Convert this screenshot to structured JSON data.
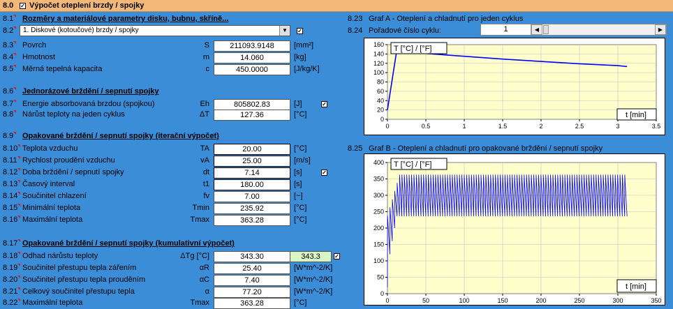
{
  "header": {
    "num": "8.0",
    "title": "Výpočet oteplení brzdy / spojky"
  },
  "left": {
    "s1": {
      "num": "8.1",
      "title": "Rozměry a materiálové parametry disku, bubnu, skříně..."
    },
    "select": {
      "num": "8.2",
      "value": "1. Diskové (kotoučové) brzdy / spojky"
    },
    "rows1": [
      {
        "num": "8.3",
        "label": "Povrch",
        "sym": "S",
        "value": "211093.9148",
        "unit": "[mm²]"
      },
      {
        "num": "8.4",
        "label": "Hmotnost",
        "sym": "m",
        "value": "14.060",
        "unit": "[kg]"
      },
      {
        "num": "8.5",
        "label": "Měrná tepelná kapacita",
        "sym": "c",
        "value": "450.0000",
        "unit": "[J/kg/K]"
      }
    ],
    "s2": {
      "num": "8.6",
      "title": "Jednorázové brždění / sepnutí spojky"
    },
    "rows2": [
      {
        "num": "8.7",
        "label": "Energie absorbovaná brzdou (spojkou)",
        "sym": "Eh",
        "value": "805802.83",
        "unit": "[J]"
      },
      {
        "num": "8.8",
        "label": "Nárůst teploty na jeden cyklus",
        "sym": "ΔT",
        "value": "127.36",
        "unit": "[°C]"
      }
    ],
    "s3": {
      "num": "8.9",
      "title": "Opakované brždění / sepnutí spojky (iterační výpočet)"
    },
    "rows3": [
      {
        "num": "8.10",
        "label": "Teplota vzduchu",
        "sym": "TA",
        "value": "20.00",
        "unit": "[°C]"
      },
      {
        "num": "8.11",
        "label": "Rychlost proudění vzduchu",
        "sym": "vA",
        "value": "25.00",
        "unit": "[m/s]"
      },
      {
        "num": "8.12",
        "label": "Doba brždění / sepnutí spojky",
        "sym": "dt",
        "value": "7.14",
        "unit": "[s]"
      },
      {
        "num": "8.13",
        "label": "Časový interval",
        "sym": "t1",
        "value": "180.00",
        "unit": "[s]"
      },
      {
        "num": "8.14",
        "label": "Součinitel chlazení",
        "sym": "fv",
        "value": "7.00",
        "unit": "[~]"
      },
      {
        "num": "8.15",
        "label": "Minimální teplota",
        "sym": "Tmin",
        "value": "235.92",
        "unit": "[°C]"
      },
      {
        "num": "8.16",
        "label": "Maximální teplota",
        "sym": "Tmax",
        "value": "363.28",
        "unit": "[°C]"
      }
    ],
    "s4": {
      "num": "8.17",
      "title": "Opakované brždění / sepnutí spojky (kumulativní výpočet)"
    },
    "rows4": [
      {
        "num": "8.18",
        "label": "Odhad nárůstu teploty",
        "sym": "ΔTg [°C]",
        "value": "343.30",
        "unit": "",
        "extra": "343.3"
      },
      {
        "num": "8.19",
        "label": "Součinitel přestupu tepla zářením",
        "sym": "αR",
        "value": "25.40",
        "unit": "[W*m^-2/K]"
      },
      {
        "num": "8.20",
        "label": "Součinitel přestupu tepla prouděním",
        "sym": "αC",
        "value": "7.40",
        "unit": "[W*m^-2/K]"
      },
      {
        "num": "8.21",
        "label": "Celkový součinitel přestupu tepla",
        "sym": "α",
        "value": "77.20",
        "unit": "[W*m^-2/K]"
      },
      {
        "num": "8.22",
        "label": "Maximální teplota",
        "sym": "Tmax",
        "value": "363.28",
        "unit": "[°C]"
      }
    ]
  },
  "right": {
    "graphA": {
      "num": "8.23",
      "title": "Graf A - Oteplení a chladnutí pro jeden cyklus"
    },
    "cycle": {
      "num": "8.24",
      "label": "Pořadové číslo cyklu:",
      "value": "1"
    },
    "graphB": {
      "num": "8.25",
      "title": "Graf B - Oteplení a chladnutí pro opakované brždění / sepnutí spojky"
    }
  },
  "chart_data": [
    {
      "type": "line",
      "ylabel": "T [°C] / [°F]",
      "xlabel": "t [min]",
      "xlim": [
        0,
        3.5
      ],
      "ylim": [
        0,
        160
      ],
      "xticks": [
        "0",
        "0.5",
        "1",
        "1.5",
        "2",
        "2.5",
        "3",
        "3.5"
      ],
      "yticks": [
        "0",
        "20",
        "40",
        "60",
        "80",
        "100",
        "120",
        "140",
        "160"
      ],
      "x": [
        0,
        0.12,
        0.5,
        1,
        1.5,
        2,
        2.5,
        3,
        3.12
      ],
      "y": [
        20,
        147,
        141,
        135,
        129,
        124,
        119,
        115,
        113
      ],
      "color": "#0000ff"
    },
    {
      "type": "line",
      "ylabel": "T [°C] / [°F]",
      "xlabel": "t [min]",
      "xlim": [
        0,
        350
      ],
      "ylim": [
        0,
        400
      ],
      "xticks": [
        "0",
        "50",
        "100",
        "150",
        "200",
        "250",
        "300",
        "350"
      ],
      "yticks": [
        "0",
        "50",
        "100",
        "150",
        "200",
        "250",
        "300",
        "350",
        "400"
      ],
      "cycles": 100,
      "t_end": 312,
      "tmin": 236,
      "tmax": 363,
      "color": "#0000ff"
    }
  ]
}
